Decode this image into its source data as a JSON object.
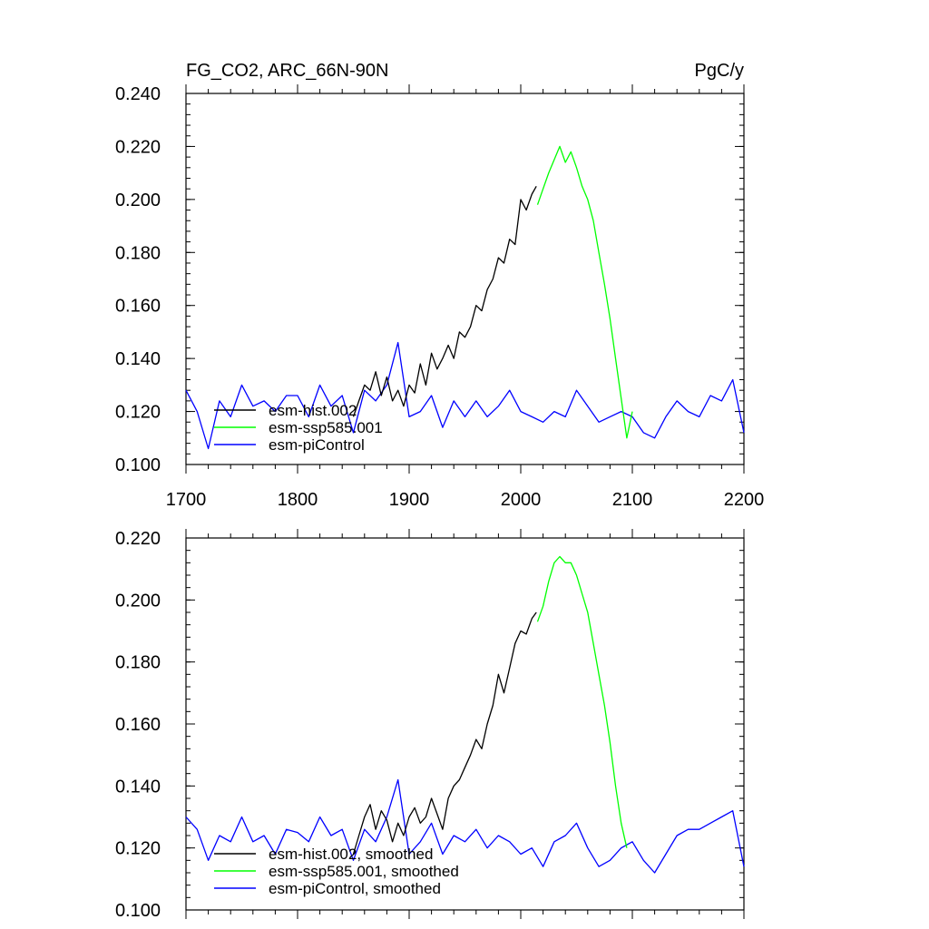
{
  "figure": {
    "title_left": "FG_CO2, ARC_66N-90N",
    "title_right": "PgC/y"
  },
  "colors": {
    "hist": "#000000",
    "ssp": "#00ff00",
    "piControl": "#0000ff"
  },
  "chart_data": [
    {
      "type": "line",
      "title": "FG_CO2, ARC_66N-90N",
      "units": "PgC/y",
      "xlim": [
        1700,
        2200
      ],
      "ylim": [
        0.1,
        0.24
      ],
      "xticks": [
        1700,
        1800,
        1900,
        2000,
        2100,
        2200
      ],
      "xtick_labels": [
        "1700",
        "1800",
        "1900",
        "2000",
        "2100",
        "2200"
      ],
      "yticks": [
        0.1,
        0.12,
        0.14,
        0.16,
        0.18,
        0.2,
        0.22,
        0.24
      ],
      "ytick_labels": [
        "0.100",
        "0.120",
        "0.140",
        "0.160",
        "0.180",
        "0.200",
        "0.220",
        "0.240"
      ],
      "legend_position": "lower-left",
      "series": [
        {
          "name": "esm-hist.002",
          "color": "#000000",
          "x": [
            1850,
            1855,
            1860,
            1865,
            1870,
            1875,
            1880,
            1885,
            1890,
            1895,
            1900,
            1905,
            1910,
            1915,
            1920,
            1925,
            1930,
            1935,
            1940,
            1945,
            1950,
            1955,
            1960,
            1965,
            1970,
            1975,
            1980,
            1985,
            1990,
            1995,
            2000,
            2005,
            2010,
            2014
          ],
          "y": [
            0.118,
            0.124,
            0.13,
            0.128,
            0.135,
            0.126,
            0.133,
            0.124,
            0.128,
            0.122,
            0.13,
            0.127,
            0.138,
            0.13,
            0.142,
            0.136,
            0.14,
            0.145,
            0.14,
            0.15,
            0.148,
            0.152,
            0.16,
            0.158,
            0.166,
            0.17,
            0.178,
            0.176,
            0.185,
            0.183,
            0.2,
            0.196,
            0.202,
            0.205
          ]
        },
        {
          "name": "esm-ssp585.001",
          "color": "#00ff00",
          "x": [
            2015,
            2020,
            2025,
            2030,
            2035,
            2040,
            2045,
            2050,
            2055,
            2060,
            2065,
            2070,
            2075,
            2080,
            2085,
            2090,
            2095,
            2100
          ],
          "y": [
            0.198,
            0.204,
            0.21,
            0.215,
            0.22,
            0.214,
            0.218,
            0.212,
            0.205,
            0.2,
            0.192,
            0.18,
            0.168,
            0.155,
            0.14,
            0.125,
            0.11,
            0.12
          ]
        },
        {
          "name": "esm-piControl",
          "color": "#0000ff",
          "x": [
            1700,
            1710,
            1720,
            1730,
            1740,
            1750,
            1760,
            1770,
            1780,
            1790,
            1800,
            1810,
            1820,
            1830,
            1840,
            1850,
            1860,
            1870,
            1880,
            1890,
            1900,
            1910,
            1920,
            1930,
            1940,
            1950,
            1960,
            1970,
            1980,
            1990,
            2000,
            2010,
            2020,
            2030,
            2040,
            2050,
            2060,
            2070,
            2080,
            2090,
            2100,
            2110,
            2120,
            2130,
            2140,
            2150,
            2160,
            2170,
            2180,
            2190,
            2200
          ],
          "y": [
            0.128,
            0.12,
            0.106,
            0.124,
            0.118,
            0.13,
            0.122,
            0.124,
            0.12,
            0.126,
            0.126,
            0.118,
            0.13,
            0.122,
            0.126,
            0.112,
            0.128,
            0.124,
            0.13,
            0.146,
            0.118,
            0.12,
            0.126,
            0.114,
            0.124,
            0.118,
            0.124,
            0.118,
            0.122,
            0.128,
            0.12,
            0.118,
            0.116,
            0.12,
            0.118,
            0.128,
            0.122,
            0.116,
            0.118,
            0.12,
            0.118,
            0.112,
            0.11,
            0.118,
            0.124,
            0.12,
            0.118,
            0.126,
            0.124,
            0.132,
            0.112
          ]
        }
      ]
    },
    {
      "type": "line",
      "xlim": [
        1700,
        2200
      ],
      "ylim": [
        0.1,
        0.22
      ],
      "xticks": [
        1700,
        1800,
        1900,
        2000,
        2100,
        2200
      ],
      "yticks": [
        0.1,
        0.12,
        0.14,
        0.16,
        0.18,
        0.2,
        0.22
      ],
      "ytick_labels": [
        "0.100",
        "0.120",
        "0.140",
        "0.160",
        "0.180",
        "0.200",
        "0.220"
      ],
      "legend_position": "lower-left",
      "series": [
        {
          "name": "esm-hist.002, smoothed",
          "color": "#000000",
          "x": [
            1850,
            1855,
            1860,
            1865,
            1870,
            1875,
            1880,
            1885,
            1890,
            1895,
            1900,
            1905,
            1910,
            1915,
            1920,
            1925,
            1930,
            1935,
            1940,
            1945,
            1950,
            1955,
            1960,
            1965,
            1970,
            1975,
            1980,
            1985,
            1990,
            1995,
            2000,
            2005,
            2010,
            2014
          ],
          "y": [
            0.118,
            0.124,
            0.13,
            0.134,
            0.126,
            0.132,
            0.129,
            0.122,
            0.128,
            0.124,
            0.13,
            0.133,
            0.128,
            0.13,
            0.136,
            0.131,
            0.126,
            0.136,
            0.14,
            0.142,
            0.146,
            0.15,
            0.155,
            0.152,
            0.16,
            0.166,
            0.176,
            0.17,
            0.178,
            0.186,
            0.19,
            0.189,
            0.194,
            0.196
          ]
        },
        {
          "name": "esm-ssp585.001, smoothed",
          "color": "#00ff00",
          "x": [
            2015,
            2020,
            2025,
            2030,
            2035,
            2040,
            2045,
            2050,
            2055,
            2060,
            2065,
            2070,
            2075,
            2080,
            2085,
            2090,
            2095
          ],
          "y": [
            0.193,
            0.198,
            0.206,
            0.212,
            0.214,
            0.212,
            0.212,
            0.208,
            0.202,
            0.196,
            0.186,
            0.176,
            0.166,
            0.154,
            0.14,
            0.128,
            0.12
          ]
        },
        {
          "name": "esm-piControl, smoothed",
          "color": "#0000ff",
          "x": [
            1700,
            1710,
            1720,
            1730,
            1740,
            1750,
            1760,
            1770,
            1780,
            1790,
            1800,
            1810,
            1820,
            1830,
            1840,
            1850,
            1860,
            1870,
            1880,
            1890,
            1900,
            1910,
            1920,
            1930,
            1940,
            1950,
            1960,
            1970,
            1980,
            1990,
            2000,
            2010,
            2020,
            2030,
            2040,
            2050,
            2060,
            2070,
            2080,
            2090,
            2100,
            2110,
            2120,
            2130,
            2140,
            2150,
            2160,
            2170,
            2180,
            2190,
            2200
          ],
          "y": [
            0.13,
            0.126,
            0.116,
            0.124,
            0.122,
            0.13,
            0.122,
            0.124,
            0.118,
            0.126,
            0.125,
            0.122,
            0.13,
            0.124,
            0.126,
            0.116,
            0.126,
            0.122,
            0.13,
            0.142,
            0.118,
            0.122,
            0.128,
            0.118,
            0.124,
            0.122,
            0.126,
            0.12,
            0.124,
            0.122,
            0.118,
            0.12,
            0.114,
            0.122,
            0.124,
            0.128,
            0.12,
            0.114,
            0.116,
            0.12,
            0.122,
            0.116,
            0.112,
            0.118,
            0.124,
            0.126,
            0.126,
            0.128,
            0.13,
            0.132,
            0.114
          ]
        }
      ]
    }
  ],
  "legend_top": [
    {
      "label": "esm-hist.002",
      "color": "#000000"
    },
    {
      "label": "esm-ssp585.001",
      "color": "#00ff00"
    },
    {
      "label": "esm-piControl",
      "color": "#0000ff"
    }
  ],
  "legend_bottom": [
    {
      "label": "esm-hist.002, smoothed",
      "color": "#000000"
    },
    {
      "label": "esm-ssp585.001, smoothed",
      "color": "#00ff00"
    },
    {
      "label": "esm-piControl, smoothed",
      "color": "#0000ff"
    }
  ]
}
